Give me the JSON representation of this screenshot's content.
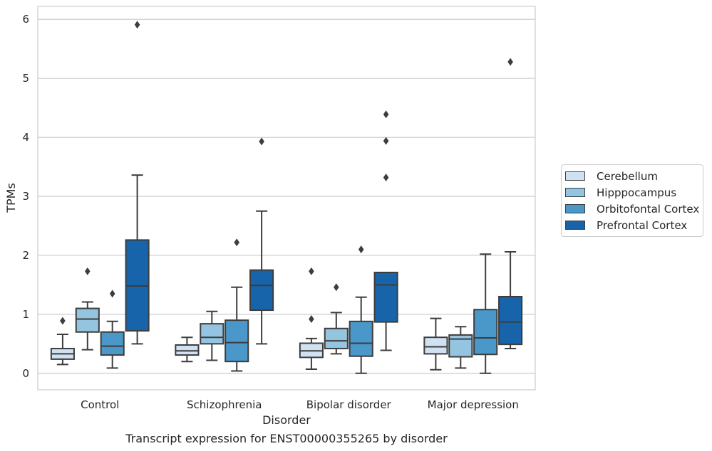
{
  "chart_data": {
    "type": "box",
    "title": "",
    "caption": "Transcript expression for ENST00000355265 by disorder",
    "xlabel": "Disorder",
    "ylabel": "TPMs",
    "categories": [
      "Control",
      "Schizophrenia",
      "Bipolar disorder",
      "Major depression"
    ],
    "yticks": [
      "0",
      "1",
      "2",
      "3",
      "4",
      "5",
      "6"
    ],
    "ylim": [
      -0.28,
      6.22
    ],
    "grid": "horizontal",
    "legend_position": "right",
    "series": [
      {
        "name": "Cerebellum",
        "color": "#d0e1f2",
        "boxes": [
          {
            "whisker_low": 0.15,
            "q1": 0.24,
            "median": 0.33,
            "q3": 0.42,
            "whisker_high": 0.66,
            "outliers": [
              0.89
            ]
          },
          {
            "whisker_low": 0.2,
            "q1": 0.31,
            "median": 0.38,
            "q3": 0.48,
            "whisker_high": 0.61,
            "outliers": []
          },
          {
            "whisker_low": 0.07,
            "q1": 0.27,
            "median": 0.38,
            "q3": 0.51,
            "whisker_high": 0.59,
            "outliers": [
              0.92,
              1.73
            ]
          },
          {
            "whisker_low": 0.06,
            "q1": 0.33,
            "median": 0.45,
            "q3": 0.61,
            "whisker_high": 0.93,
            "outliers": []
          }
        ]
      },
      {
        "name": "Hipppocampus",
        "color": "#94c4df",
        "boxes": [
          {
            "whisker_low": 0.4,
            "q1": 0.7,
            "median": 0.92,
            "q3": 1.1,
            "whisker_high": 1.21,
            "outliers": [
              1.73
            ]
          },
          {
            "whisker_low": 0.22,
            "q1": 0.5,
            "median": 0.61,
            "q3": 0.84,
            "whisker_high": 1.05,
            "outliers": []
          },
          {
            "whisker_low": 0.33,
            "q1": 0.42,
            "median": 0.55,
            "q3": 0.76,
            "whisker_high": 1.03,
            "outliers": [
              1.46
            ]
          },
          {
            "whisker_low": 0.09,
            "q1": 0.28,
            "median": 0.58,
            "q3": 0.65,
            "whisker_high": 0.79,
            "outliers": []
          }
        ]
      },
      {
        "name": "Orbitofontal Cortex",
        "color": "#4a98c9",
        "boxes": [
          {
            "whisker_low": 0.09,
            "q1": 0.31,
            "median": 0.46,
            "q3": 0.7,
            "whisker_high": 0.88,
            "outliers": [
              1.35
            ]
          },
          {
            "whisker_low": 0.04,
            "q1": 0.2,
            "median": 0.52,
            "q3": 0.9,
            "whisker_high": 1.46,
            "outliers": [
              2.22
            ]
          },
          {
            "whisker_low": 0.0,
            "q1": 0.29,
            "median": 0.51,
            "q3": 0.88,
            "whisker_high": 1.29,
            "outliers": [
              2.1
            ]
          },
          {
            "whisker_low": 0.0,
            "q1": 0.32,
            "median": 0.6,
            "q3": 1.08,
            "whisker_high": 2.02,
            "outliers": []
          }
        ]
      },
      {
        "name": "Prefrontal Cortex",
        "color": "#1764ab",
        "boxes": [
          {
            "whisker_low": 0.5,
            "q1": 0.72,
            "median": 1.48,
            "q3": 2.26,
            "whisker_high": 3.36,
            "outliers": [
              5.91
            ]
          },
          {
            "whisker_low": 0.5,
            "q1": 1.07,
            "median": 1.49,
            "q3": 1.75,
            "whisker_high": 2.75,
            "outliers": [
              3.93
            ]
          },
          {
            "whisker_low": 0.39,
            "q1": 0.87,
            "median": 1.5,
            "q3": 1.71,
            "whisker_high": 1.71,
            "outliers": [
              3.32,
              3.94,
              4.39
            ]
          },
          {
            "whisker_low": 0.42,
            "q1": 0.49,
            "median": 0.87,
            "q3": 1.3,
            "whisker_high": 2.06,
            "outliers": [
              5.28
            ]
          }
        ]
      }
    ]
  }
}
